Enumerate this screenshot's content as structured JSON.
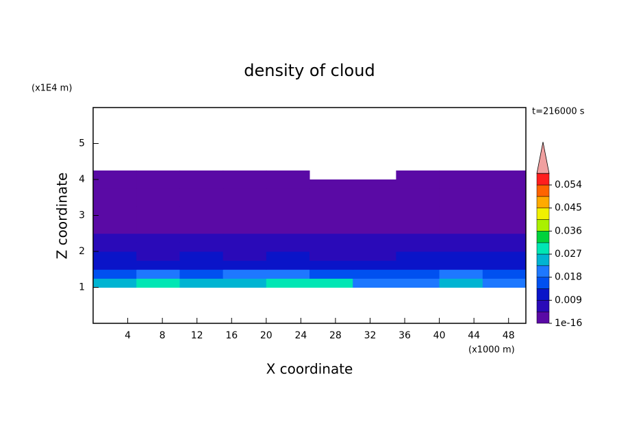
{
  "chart_data": {
    "type": "contour",
    "title": "density of cloud",
    "x_label": "X coordinate",
    "x_unit": "(x1000 m)",
    "y_label": "Z coordinate",
    "y_unit": "(x1E4 m)",
    "annotation": "t=216000 s",
    "xlim": [
      0,
      50
    ],
    "xticks": [
      4,
      8,
      12,
      16,
      20,
      24,
      28,
      32,
      36,
      40,
      44,
      48
    ],
    "ylim": [
      0,
      6
    ],
    "yticks": [
      1,
      2,
      3,
      4,
      5
    ],
    "x_bins": [
      0,
      5,
      10,
      15,
      20,
      25,
      30,
      35,
      40,
      45,
      50
    ],
    "z_bins": [
      1.0,
      1.25,
      1.5,
      1.75,
      2.0,
      2.25,
      2.5,
      2.75,
      3.0,
      3.25,
      3.5,
      3.75,
      4.0,
      4.25
    ],
    "values": [
      [
        0.026,
        0.028,
        0.024,
        0.025,
        0.03,
        0.027,
        0.02,
        0.022,
        0.025,
        0.021
      ],
      [
        0.017,
        0.019,
        0.016,
        0.018,
        0.02,
        0.017,
        0.014,
        0.016,
        0.018,
        0.015
      ],
      [
        0.012,
        0.013,
        0.011,
        0.012,
        0.013,
        0.011,
        0.01,
        0.011,
        0.012,
        0.011
      ],
      [
        0.009,
        0.008,
        0.009,
        0.008,
        0.009,
        0.008,
        0.008,
        0.009,
        0.009,
        0.01
      ],
      [
        0.007,
        0.006,
        0.007,
        0.006,
        0.007,
        0.006,
        0.006,
        0.007,
        0.007,
        0.007
      ],
      [
        0.005,
        0.005,
        0.005,
        0.005,
        0.005,
        0.005,
        0.005,
        0.005,
        0.005,
        0.006
      ],
      [
        0.004,
        0.004,
        0.004,
        0.004,
        0.004,
        0.004,
        0.004,
        0.004,
        0.004,
        0.004
      ],
      [
        0.003,
        0.003,
        0.003,
        0.003,
        0.003,
        0.003,
        0.003,
        0.003,
        0.003,
        0.003
      ],
      [
        0.002,
        0.002,
        0.002,
        0.002,
        0.002,
        0.002,
        0.002,
        0.002,
        0.002,
        0.002
      ],
      [
        0.002,
        0.002,
        0.002,
        0.002,
        0.002,
        0.002,
        0.002,
        0.002,
        0.002,
        0.002
      ],
      [
        0.0015,
        0.0015,
        0.0015,
        0.0015,
        0.0015,
        0.0015,
        0.0015,
        0.0015,
        0.0015,
        0.0015
      ],
      [
        0.001,
        0.001,
        0.001,
        0.001,
        0.001,
        0.001,
        0.001,
        0.001,
        0.001,
        0.001
      ],
      [
        0.001,
        0.001,
        0.001,
        0.001,
        0.001,
        null,
        null,
        0.001,
        0.001,
        0.001
      ]
    ],
    "levels": [
      1e-16,
      0.0045,
      0.009,
      0.0135,
      0.018,
      0.0225,
      0.027,
      0.0315,
      0.036,
      0.0405,
      0.045,
      0.0495,
      0.054,
      0.0585
    ],
    "colors": [
      "#5a0aa5",
      "#2a0ab8",
      "#0a14c8",
      "#0050f0",
      "#1e78ff",
      "#00b4d2",
      "#00e6b4",
      "#00d23c",
      "#aaf000",
      "#f0f000",
      "#ffaa00",
      "#ff6400",
      "#ff1e1e"
    ],
    "extend_color": "#f0a0a0",
    "cticks": [
      1e-16,
      0.009,
      0.018,
      0.027,
      0.036,
      0.045,
      0.054
    ]
  }
}
